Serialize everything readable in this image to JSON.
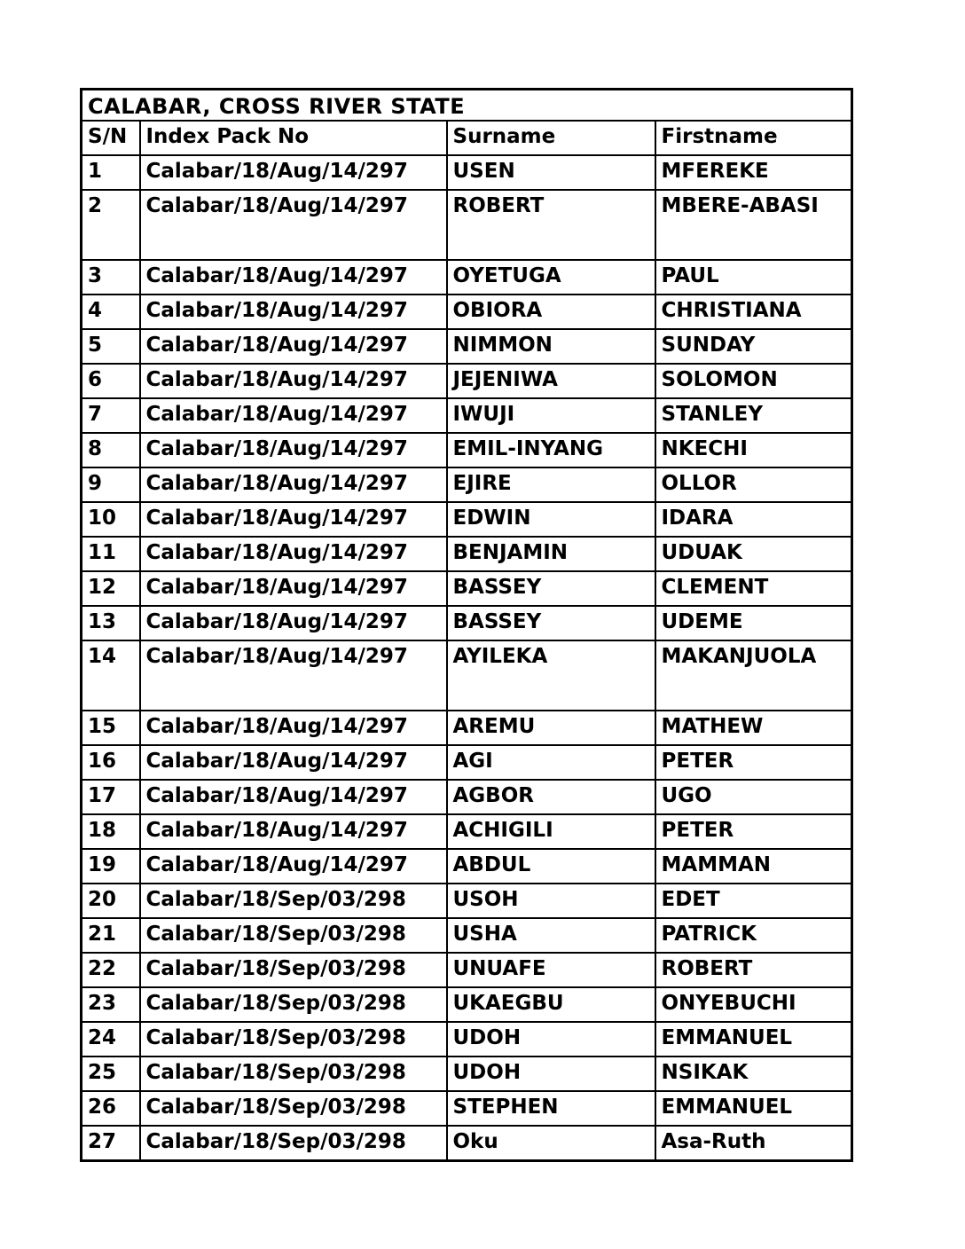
{
  "title": "CALABAR, CROSS RIVER STATE",
  "colors": {
    "border": "#000000",
    "text": "#000000",
    "background": "#ffffff"
  },
  "table": {
    "columns": [
      "S/N",
      "Index Pack No",
      "Surname",
      "Firstname"
    ],
    "rows": [
      {
        "sn": "1",
        "index_pack_no": "Calabar/18/Aug/14/297",
        "surname": "USEN",
        "firstname": "MFEREKE",
        "tall": false
      },
      {
        "sn": "2",
        "index_pack_no": "Calabar/18/Aug/14/297",
        "surname": "ROBERT",
        "firstname": "MBERE-ABASI",
        "tall": true
      },
      {
        "sn": "3",
        "index_pack_no": "Calabar/18/Aug/14/297",
        "surname": "OYETUGA",
        "firstname": "PAUL",
        "tall": false
      },
      {
        "sn": "4",
        "index_pack_no": "Calabar/18/Aug/14/297",
        "surname": "OBIORA",
        "firstname": "CHRISTIANA",
        "tall": false
      },
      {
        "sn": "5",
        "index_pack_no": "Calabar/18/Aug/14/297",
        "surname": "NIMMON",
        "firstname": "SUNDAY",
        "tall": false
      },
      {
        "sn": "6",
        "index_pack_no": "Calabar/18/Aug/14/297",
        "surname": "JEJENIWA",
        "firstname": "SOLOMON",
        "tall": false
      },
      {
        "sn": "7",
        "index_pack_no": "Calabar/18/Aug/14/297",
        "surname": "IWUJI",
        "firstname": "STANLEY",
        "tall": false
      },
      {
        "sn": "8",
        "index_pack_no": "Calabar/18/Aug/14/297",
        "surname": "EMIL-INYANG",
        "firstname": "NKECHI",
        "tall": false
      },
      {
        "sn": "9",
        "index_pack_no": "Calabar/18/Aug/14/297",
        "surname": "EJIRE",
        "firstname": "OLLOR",
        "tall": false
      },
      {
        "sn": "10",
        "index_pack_no": "Calabar/18/Aug/14/297",
        "surname": "EDWIN",
        "firstname": "IDARA",
        "tall": false
      },
      {
        "sn": "11",
        "index_pack_no": "Calabar/18/Aug/14/297",
        "surname": "BENJAMIN",
        "firstname": "UDUAK",
        "tall": false
      },
      {
        "sn": "12",
        "index_pack_no": "Calabar/18/Aug/14/297",
        "surname": "BASSEY",
        "firstname": "CLEMENT",
        "tall": false
      },
      {
        "sn": "13",
        "index_pack_no": "Calabar/18/Aug/14/297",
        "surname": "BASSEY",
        "firstname": "UDEME",
        "tall": false
      },
      {
        "sn": "14",
        "index_pack_no": "Calabar/18/Aug/14/297",
        "surname": "AYILEKA",
        "firstname": "MAKANJUOLA",
        "tall": true
      },
      {
        "sn": "15",
        "index_pack_no": "Calabar/18/Aug/14/297",
        "surname": "AREMU",
        "firstname": "MATHEW",
        "tall": false
      },
      {
        "sn": "16",
        "index_pack_no": "Calabar/18/Aug/14/297",
        "surname": "AGI",
        "firstname": "PETER",
        "tall": false
      },
      {
        "sn": "17",
        "index_pack_no": "Calabar/18/Aug/14/297",
        "surname": "AGBOR",
        "firstname": "UGO",
        "tall": false
      },
      {
        "sn": "18",
        "index_pack_no": "Calabar/18/Aug/14/297",
        "surname": "ACHIGILI",
        "firstname": "PETER",
        "tall": false
      },
      {
        "sn": "19",
        "index_pack_no": "Calabar/18/Aug/14/297",
        "surname": "ABDUL",
        "firstname": "MAMMAN",
        "tall": false
      },
      {
        "sn": "20",
        "index_pack_no": "Calabar/18/Sep/03/298",
        "surname": "USOH",
        "firstname": "EDET",
        "tall": false
      },
      {
        "sn": "21",
        "index_pack_no": "Calabar/18/Sep/03/298",
        "surname": "USHA",
        "firstname": "PATRICK",
        "tall": false
      },
      {
        "sn": "22",
        "index_pack_no": "Calabar/18/Sep/03/298",
        "surname": "UNUAFE",
        "firstname": "ROBERT",
        "tall": false
      },
      {
        "sn": "23",
        "index_pack_no": "Calabar/18/Sep/03/298",
        "surname": "UKAEGBU",
        "firstname": "ONYEBUCHI",
        "tall": false
      },
      {
        "sn": "24",
        "index_pack_no": "Calabar/18/Sep/03/298",
        "surname": "UDOH",
        "firstname": "EMMANUEL",
        "tall": false
      },
      {
        "sn": "25",
        "index_pack_no": "Calabar/18/Sep/03/298",
        "surname": "UDOH",
        "firstname": "NSIKAK",
        "tall": false
      },
      {
        "sn": "26",
        "index_pack_no": "Calabar/18/Sep/03/298",
        "surname": "STEPHEN",
        "firstname": "EMMANUEL",
        "tall": false
      },
      {
        "sn": "27",
        "index_pack_no": "Calabar/18/Sep/03/298",
        "surname": "Oku",
        "firstname": "Asa-Ruth",
        "tall": false
      }
    ]
  }
}
